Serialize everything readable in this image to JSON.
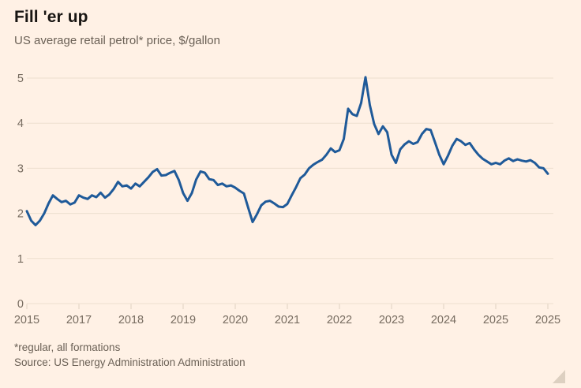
{
  "header": {
    "title": "Fill 'er up",
    "subtitle": "US average retail petrol* price, $/gallon"
  },
  "footer": {
    "footnote": "*regular, all formations",
    "source": "Source: US Energy Administration Administration"
  },
  "colors": {
    "background": "#FFF1E5",
    "line": "#1F5A99",
    "gridline": "#EDDFCF",
    "tick": "#DFD1C1",
    "axis_text": "#776C60",
    "title_text": "#181512",
    "subtitle_text": "#6B6156",
    "resize_handle": "#CFC2B2"
  },
  "chart_data": {
    "type": "line",
    "title": "Fill 'er up",
    "subtitle": "US average retail petrol* price, $/gallon",
    "xlabel": "",
    "ylabel": "$/gallon",
    "ylim": [
      0,
      5
    ],
    "y_ticks": [
      0,
      1,
      2,
      3,
      4,
      5
    ],
    "x_tick_labels": [
      "2015",
      "2017",
      "2018",
      "2019",
      "2020",
      "2021",
      "2022",
      "2023",
      "2024",
      "2025",
      "2025"
    ],
    "grid": "horizontal",
    "legend": "none",
    "sampling": "approximately monthly, 2015 to 2025",
    "series": [
      {
        "name": "US average retail petrol price, $/gallon",
        "values": [
          2.05,
          1.84,
          1.74,
          1.84,
          2.0,
          2.22,
          2.4,
          2.32,
          2.25,
          2.28,
          2.2,
          2.24,
          2.4,
          2.35,
          2.32,
          2.4,
          2.36,
          2.46,
          2.35,
          2.42,
          2.54,
          2.7,
          2.6,
          2.62,
          2.55,
          2.66,
          2.6,
          2.7,
          2.8,
          2.92,
          2.98,
          2.84,
          2.85,
          2.9,
          2.94,
          2.74,
          2.45,
          2.28,
          2.45,
          2.75,
          2.93,
          2.9,
          2.76,
          2.74,
          2.63,
          2.66,
          2.6,
          2.62,
          2.57,
          2.5,
          2.44,
          2.12,
          1.81,
          1.98,
          2.18,
          2.26,
          2.28,
          2.22,
          2.15,
          2.14,
          2.21,
          2.4,
          2.58,
          2.78,
          2.86,
          3.0,
          3.08,
          3.14,
          3.19,
          3.3,
          3.44,
          3.36,
          3.4,
          3.65,
          4.32,
          4.2,
          4.16,
          4.45,
          5.02,
          4.4,
          3.98,
          3.76,
          3.93,
          3.8,
          3.3,
          3.12,
          3.42,
          3.53,
          3.6,
          3.54,
          3.58,
          3.76,
          3.87,
          3.85,
          3.58,
          3.3,
          3.09,
          3.28,
          3.5,
          3.65,
          3.6,
          3.52,
          3.56,
          3.42,
          3.3,
          3.21,
          3.15,
          3.09,
          3.12,
          3.09,
          3.17,
          3.22,
          3.16,
          3.2,
          3.17,
          3.15,
          3.18,
          3.12,
          3.02,
          3.0,
          2.88
        ]
      }
    ]
  }
}
